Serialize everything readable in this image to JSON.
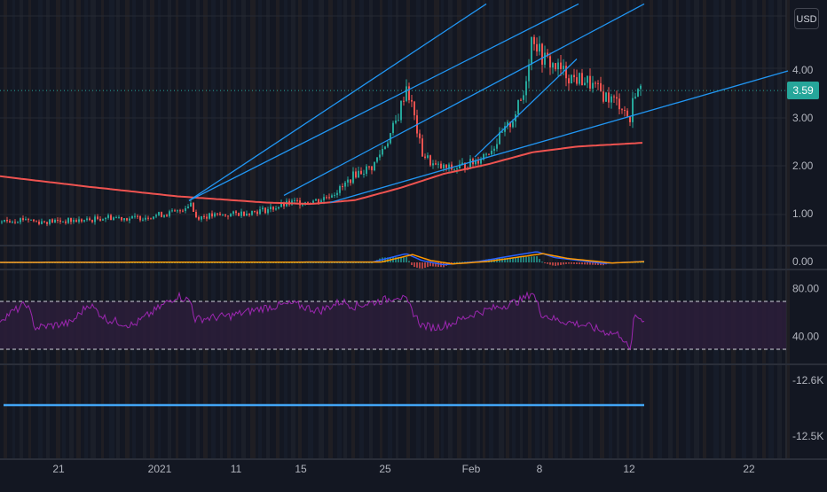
{
  "header": {
    "currency": "USD"
  },
  "last_price": {
    "value": 3.59,
    "label": "3.59"
  },
  "colors": {
    "background": "#131722",
    "grid": "#242833",
    "separator": "#2a2e39",
    "axis_text": "#b2b5be",
    "ma": "#ef5350",
    "trendline": "#2196f3",
    "up": "#26a69a",
    "down": "#ef5350",
    "rsi": "#9c27b0",
    "rsi_fill": "#2b1d3a",
    "macd": "#2962ff",
    "signal": "#ff9800",
    "hline": "#42a5f5",
    "price_tag": "#26a69a"
  },
  "chart_data": [
    {
      "type": "candlestick",
      "pane": "price",
      "y_ticks": [
        "1.00",
        "2.00",
        "3.00",
        "4.00"
      ],
      "y_tick_values": [
        1,
        2,
        3,
        4
      ],
      "ylim": [
        0.4,
        5.35
      ],
      "x_tick_labels": [
        "21",
        "2021",
        "11",
        "15",
        "25",
        "Feb",
        "8",
        "12",
        "22"
      ],
      "price_anchors": [
        [
          0,
          0.85
        ],
        [
          30,
          0.92
        ],
        [
          40,
          0.85
        ],
        [
          100,
          0.88
        ],
        [
          120,
          0.95
        ],
        [
          150,
          0.92
        ],
        [
          200,
          1.05
        ],
        [
          215,
          1.25
        ],
        [
          220,
          0.95
        ],
        [
          260,
          1.0
        ],
        [
          300,
          1.1
        ],
        [
          330,
          1.25
        ],
        [
          360,
          1.3
        ],
        [
          385,
          1.55
        ],
        [
          400,
          1.85
        ],
        [
          420,
          2.0
        ],
        [
          438,
          2.6
        ],
        [
          448,
          3.0
        ],
        [
          458,
          3.7
        ],
        [
          465,
          3.2
        ],
        [
          475,
          2.3
        ],
        [
          490,
          2.0
        ],
        [
          510,
          1.95
        ],
        [
          535,
          2.1
        ],
        [
          555,
          2.4
        ],
        [
          575,
          2.9
        ],
        [
          590,
          3.5
        ],
        [
          600,
          4.8
        ],
        [
          610,
          4.3
        ],
        [
          625,
          4.1
        ],
        [
          645,
          3.85
        ],
        [
          660,
          3.8
        ],
        [
          680,
          3.5
        ],
        [
          700,
          3.3
        ],
        [
          710,
          2.95
        ],
        [
          715,
          3.6
        ],
        [
          722,
          3.59
        ]
      ],
      "moving_average": {
        "anchors": [
          [
            0,
            1.8
          ],
          [
            100,
            1.58
          ],
          [
            200,
            1.38
          ],
          [
            300,
            1.25
          ],
          [
            350,
            1.22
          ],
          [
            400,
            1.3
          ],
          [
            450,
            1.55
          ],
          [
            500,
            1.85
          ],
          [
            550,
            2.05
          ],
          [
            600,
            2.3
          ],
          [
            650,
            2.42
          ],
          [
            726,
            2.5
          ]
        ]
      },
      "trendlines": [
        {
          "from": [
            213,
            1.29
          ],
          "to": [
            548,
            5.4
          ]
        },
        {
          "from": [
            213,
            1.29
          ],
          "to": [
            652,
            5.4
          ]
        },
        {
          "from": [
            320,
            1.4
          ],
          "to": [
            726,
            5.4
          ]
        },
        {
          "from": [
            372,
            1.25
          ],
          "to": [
            888,
            4.0
          ]
        },
        {
          "from": [
            535,
            2.2
          ],
          "to": [
            650,
            4.25
          ]
        }
      ],
      "price_guide": 3.59
    },
    {
      "type": "line",
      "pane": "macd",
      "y_ticks": [
        "0.00"
      ],
      "series": [
        {
          "name": "",
          "anchors": [
            [
              0,
              0.0
            ],
            [
              420,
              0.02
            ],
            [
              458,
              0.45
            ],
            [
              475,
              0.1
            ],
            [
              500,
              -0.12
            ],
            [
              540,
              0.05
            ],
            [
              605,
              0.55
            ],
            [
              625,
              0.25
            ],
            [
              680,
              -0.05
            ],
            [
              726,
              0.05
            ]
          ]
        },
        {
          "name": "",
          "anchors": [
            [
              0,
              0.0
            ],
            [
              430,
              0.02
            ],
            [
              465,
              0.4
            ],
            [
              485,
              0.1
            ],
            [
              510,
              -0.08
            ],
            [
              550,
              0.05
            ],
            [
              612,
              0.45
            ],
            [
              640,
              0.2
            ],
            [
              690,
              -0.03
            ],
            [
              726,
              0.04
            ]
          ]
        }
      ],
      "ylim": [
        -0.6,
        1.0
      ]
    },
    {
      "type": "area",
      "pane": "rsi",
      "y_ticks": [
        "40.00",
        "80.00"
      ],
      "y_tick_values": [
        40,
        80
      ],
      "bands": [
        70,
        30
      ],
      "ylim": [
        20,
        95
      ],
      "anchors": [
        [
          0,
          55
        ],
        [
          30,
          68
        ],
        [
          40,
          48
        ],
        [
          80,
          52
        ],
        [
          100,
          68
        ],
        [
          120,
          55
        ],
        [
          150,
          50
        ],
        [
          200,
          75
        ],
        [
          215,
          70
        ],
        [
          220,
          55
        ],
        [
          260,
          58
        ],
        [
          300,
          65
        ],
        [
          330,
          68
        ],
        [
          360,
          62
        ],
        [
          385,
          70
        ],
        [
          400,
          66
        ],
        [
          438,
          72
        ],
        [
          448,
          75
        ],
        [
          458,
          70
        ],
        [
          475,
          50
        ],
        [
          490,
          48
        ],
        [
          510,
          52
        ],
        [
          535,
          60
        ],
        [
          555,
          64
        ],
        [
          575,
          68
        ],
        [
          590,
          72
        ],
        [
          600,
          78
        ],
        [
          610,
          60
        ],
        [
          625,
          55
        ],
        [
          645,
          52
        ],
        [
          660,
          50
        ],
        [
          680,
          45
        ],
        [
          700,
          42
        ],
        [
          710,
          28
        ],
        [
          715,
          58
        ],
        [
          726,
          55
        ]
      ]
    },
    {
      "type": "line",
      "pane": "bottom",
      "y_ticks": [
        "-12.6K",
        "-12.5K"
      ],
      "hline_label": ""
    }
  ]
}
